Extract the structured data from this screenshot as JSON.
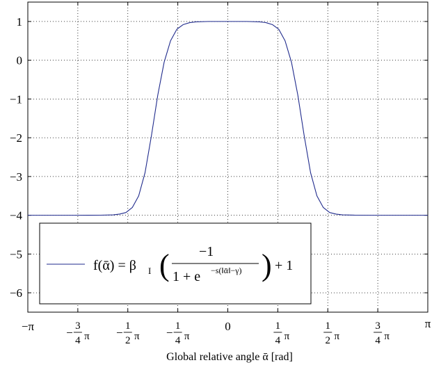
{
  "chart_data": {
    "type": "line",
    "title": "",
    "xlabel": "Global relative angle ᾱ [rad]",
    "ylabel": "",
    "xlim": [
      -3.14159265,
      3.14159265
    ],
    "ylim": [
      -6.5,
      1.5
    ],
    "grid": true,
    "x_ticks": [
      {
        "value": -3.14159265,
        "label": "−π",
        "frac": false
      },
      {
        "value": -2.35619449,
        "label": "−3/4π",
        "frac": true,
        "sign": "−",
        "num": "3",
        "den": "4",
        "suffix": "π"
      },
      {
        "value": -1.57079633,
        "label": "−1/2π",
        "frac": true,
        "sign": "−",
        "num": "1",
        "den": "2",
        "suffix": "π"
      },
      {
        "value": -0.78539816,
        "label": "−1/4π",
        "frac": true,
        "sign": "−",
        "num": "1",
        "den": "4",
        "suffix": "π"
      },
      {
        "value": 0,
        "label": "0",
        "frac": false
      },
      {
        "value": 0.78539816,
        "label": "1/4π",
        "frac": true,
        "sign": "",
        "num": "1",
        "den": "4",
        "suffix": "π"
      },
      {
        "value": 1.57079633,
        "label": "1/2π",
        "frac": true,
        "sign": "",
        "num": "1",
        "den": "2",
        "suffix": "π"
      },
      {
        "value": 2.35619449,
        "label": "3/4π",
        "frac": true,
        "sign": "",
        "num": "3",
        "den": "4",
        "suffix": "π"
      },
      {
        "value": 3.14159265,
        "label": "π",
        "frac": false
      }
    ],
    "y_ticks": [
      {
        "value": 1,
        "label": "1"
      },
      {
        "value": 0,
        "label": "0"
      },
      {
        "value": -1,
        "label": "−1"
      },
      {
        "value": -2,
        "label": "−2"
      },
      {
        "value": -3,
        "label": "−3"
      },
      {
        "value": -4,
        "label": "−4"
      },
      {
        "value": -5,
        "label": "−5"
      },
      {
        "value": -6,
        "label": "−6"
      }
    ],
    "series": [
      {
        "name": "f(ᾱ) = β_I ( −1 / (1 + e^(−s(‖ᾱ‖−γ))) ) + 1",
        "color": "#1f2a8c",
        "x": [
          -3.1416,
          -2.8,
          -2.4,
          -2.0,
          -1.8,
          -1.7,
          -1.6,
          -1.5,
          -1.4,
          -1.3,
          -1.2,
          -1.1,
          -1.0,
          -0.9,
          -0.8,
          -0.7,
          -0.6,
          -0.5,
          -0.3,
          0,
          0.3,
          0.5,
          0.6,
          0.7,
          0.8,
          0.9,
          1.0,
          1.1,
          1.2,
          1.3,
          1.4,
          1.5,
          1.6,
          1.7,
          1.8,
          2.0,
          2.4,
          2.8,
          3.1416
        ],
        "y": [
          -4.0,
          -4.0,
          -4.0,
          -3.998,
          -3.99,
          -3.97,
          -3.93,
          -3.8,
          -3.5,
          -2.9,
          -1.95,
          -0.9,
          -0.05,
          0.5,
          0.8,
          0.92,
          0.97,
          0.99,
          1.0,
          1.0,
          1.0,
          0.99,
          0.97,
          0.92,
          0.8,
          0.5,
          -0.05,
          -0.9,
          -1.95,
          -2.9,
          -3.5,
          -3.8,
          -3.93,
          -3.97,
          -3.99,
          -3.998,
          -4.0,
          -4.0,
          -4.0
        ]
      }
    ],
    "legend": {
      "placement": "lower-left",
      "label_parts": {
        "lhs": "f(ᾱ) = β",
        "sub": "I",
        "num": "−1",
        "den_base": "1 + e",
        "den_sup": "−s(‖ᾱ‖−γ)",
        "tail": "+ 1"
      }
    }
  }
}
